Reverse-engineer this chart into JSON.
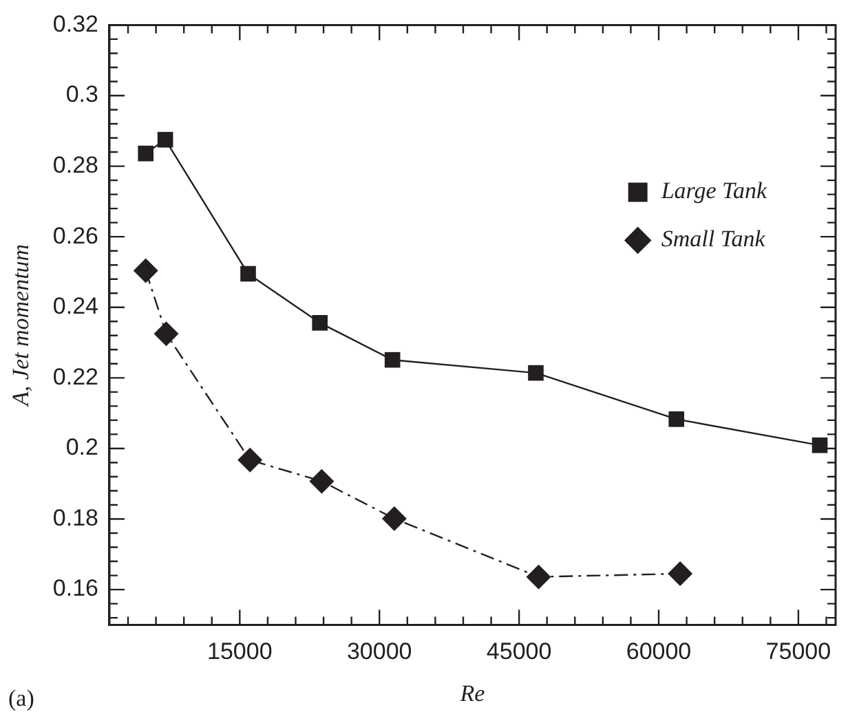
{
  "chart_data": {
    "type": "line",
    "xlabel": "Re",
    "ylabel": "A, Jet momentum",
    "annotations": [
      "(a)"
    ],
    "xlim": [
      1000,
      79000
    ],
    "ylim": [
      0.15,
      0.32
    ],
    "xticks": [
      {
        "value": 3000,
        "label": null
      },
      {
        "value": 6000,
        "label": null
      },
      {
        "value": 9000,
        "label": null
      },
      {
        "value": 12000,
        "label": null
      },
      15000,
      {
        "value": 18000,
        "label": null
      },
      {
        "value": 21000,
        "label": null
      },
      {
        "value": 24000,
        "label": null
      },
      {
        "value": 27000,
        "label": null
      },
      30000,
      {
        "value": 33000,
        "label": null
      },
      {
        "value": 36000,
        "label": null
      },
      {
        "value": 39000,
        "label": null
      },
      {
        "value": 42000,
        "label": null
      },
      45000,
      {
        "value": 48000,
        "label": null
      },
      {
        "value": 51000,
        "label": null
      },
      {
        "value": 54000,
        "label": null
      },
      {
        "value": 57000,
        "label": null
      },
      60000,
      {
        "value": 63000,
        "label": null
      },
      {
        "value": 66000,
        "label": null
      },
      {
        "value": 69000,
        "label": null
      },
      {
        "value": 72000,
        "label": null
      },
      75000,
      {
        "value": 78000,
        "label": null
      }
    ],
    "yticks": [
      {
        "value": 0.152,
        "label": null
      },
      {
        "value": 0.156,
        "label": null
      },
      0.16,
      {
        "value": 0.164,
        "label": null
      },
      {
        "value": 0.168,
        "label": null
      },
      {
        "value": 0.172,
        "label": null
      },
      {
        "value": 0.176,
        "label": null
      },
      0.18,
      {
        "value": 0.184,
        "label": null
      },
      {
        "value": 0.188,
        "label": null
      },
      {
        "value": 0.192,
        "label": null
      },
      {
        "value": 0.196,
        "label": null
      },
      0.2,
      {
        "value": 0.204,
        "label": null
      },
      {
        "value": 0.208,
        "label": null
      },
      {
        "value": 0.212,
        "label": null
      },
      {
        "value": 0.216,
        "label": null
      },
      0.22,
      {
        "value": 0.224,
        "label": null
      },
      {
        "value": 0.228,
        "label": null
      },
      {
        "value": 0.232,
        "label": null
      },
      {
        "value": 0.236,
        "label": null
      },
      0.24,
      {
        "value": 0.244,
        "label": null
      },
      {
        "value": 0.248,
        "label": null
      },
      {
        "value": 0.252,
        "label": null
      },
      {
        "value": 0.256,
        "label": null
      },
      0.26,
      {
        "value": 0.264,
        "label": null
      },
      {
        "value": 0.268,
        "label": null
      },
      {
        "value": 0.272,
        "label": null
      },
      {
        "value": 0.276,
        "label": null
      },
      0.28,
      {
        "value": 0.284,
        "label": null
      },
      {
        "value": 0.288,
        "label": null
      },
      {
        "value": 0.292,
        "label": null
      },
      {
        "value": 0.296,
        "label": null
      },
      0.3,
      {
        "value": 0.304,
        "label": null
      },
      {
        "value": 0.308,
        "label": null
      },
      {
        "value": 0.312,
        "label": null
      },
      {
        "value": 0.316,
        "label": null
      },
      0.32
    ],
    "grid": false,
    "legend": "top right",
    "series": [
      {
        "name": "Large Tank",
        "color": "#231f20",
        "marker": "square",
        "line_style": "solid",
        "x": [
          4900,
          7000,
          15900,
          23600,
          31400,
          46800,
          61900,
          77300
        ],
        "values": [
          0.2836,
          0.2875,
          0.2495,
          0.2356,
          0.2251,
          0.2214,
          0.2083,
          0.2009
        ]
      },
      {
        "name": "Small Tank",
        "color": "#231f20",
        "marker": "diamond",
        "line_style": "dashed",
        "x": [
          4900,
          7100,
          16100,
          23800,
          31600,
          47100,
          62300
        ],
        "values": [
          0.2504,
          0.2325,
          0.1967,
          0.1907,
          0.1801,
          0.1636,
          0.1645
        ]
      }
    ]
  }
}
